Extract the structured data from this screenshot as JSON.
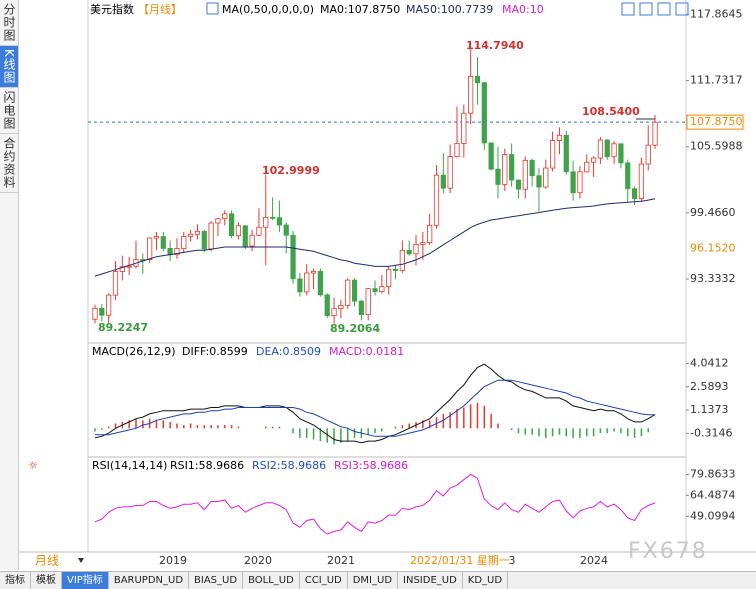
{
  "sidebar": [
    "分时图",
    "K线图",
    "闪电图",
    "合约资料"
  ],
  "tabs": [
    "指标",
    "模板",
    "VIP指标",
    "BARUPDN_UD",
    "BIAS_UD",
    "BOLL_UD",
    "CCI_UD",
    "DMI_UD",
    "INSIDE_UD",
    "KD_UD"
  ],
  "watermark": "FX678",
  "chart_data": {
    "type": "candlestick",
    "title": "美元指数",
    "period": "【月线】",
    "period_tab": "月线",
    "legend": [
      "MA(0,50,0,0,0,0)",
      "MA0:107.8750",
      "MA50:100.7739",
      "MA0:10"
    ],
    "ylim": [
      87.4,
      119.2
    ],
    "yticks": [
      117.8645,
      111.7317,
      105.5988,
      {
        "value": 99.466,
        "label": "99.4660"
      },
      93.3332
    ],
    "up_color": "#e8382f",
    "down_color": "#3ea34a",
    "last_price": {
      "value": 107.875,
      "label": "107.8750"
    },
    "side_label": {
      "value": 96.152,
      "label": "96.1520"
    },
    "annotations": [
      "114.7940",
      "108.5400",
      "102.9999",
      "89.2247",
      "89.2064"
    ],
    "x_labels": [
      "2019",
      "2020",
      "2021",
      "2022/01/31 星期一",
      "3",
      "2024"
    ],
    "ohlc": [
      [
        89.6,
        90.95,
        89.2247,
        90.61
      ],
      [
        90.61,
        91.0,
        89.4,
        89.97
      ],
      [
        89.97,
        92.0,
        89.23,
        91.84
      ],
      [
        91.84,
        95.0,
        91.4,
        94.02
      ],
      [
        94.02,
        95.5,
        93.2,
        94.47
      ],
      [
        94.47,
        95.4,
        93.7,
        94.52
      ],
      [
        94.52,
        96.9,
        94.3,
        95.14
      ],
      [
        95.14,
        95.7,
        93.8,
        95.13
      ],
      [
        95.13,
        97.2,
        94.8,
        97.13
      ],
      [
        97.13,
        97.7,
        96.0,
        97.27
      ],
      [
        97.27,
        97.7,
        95.9,
        96.17
      ],
      [
        96.17,
        96.9,
        95.0,
        95.58
      ],
      [
        95.58,
        97.1,
        95.2,
        96.16
      ],
      [
        96.16,
        97.7,
        95.8,
        97.28
      ],
      [
        97.28,
        97.9,
        96.8,
        97.48
      ],
      [
        97.48,
        98.4,
        97.0,
        97.75
      ],
      [
        97.75,
        97.9,
        95.8,
        96.13
      ],
      [
        96.13,
        98.7,
        95.9,
        98.52
      ],
      [
        98.52,
        99.0,
        97.3,
        98.92
      ],
      [
        98.92,
        99.7,
        98.3,
        99.38
      ],
      [
        99.38,
        99.7,
        97.1,
        97.35
      ],
      [
        97.35,
        98.6,
        97.0,
        98.27
      ],
      [
        98.27,
        98.3,
        96.1,
        96.39
      ],
      [
        96.39,
        97.9,
        95.9,
        97.39
      ],
      [
        97.39,
        99.9,
        97.3,
        98.13
      ],
      [
        98.13,
        102.9999,
        94.6,
        99.05
      ],
      [
        99.05,
        100.9,
        98.8,
        99.02
      ],
      [
        99.02,
        100.6,
        97.7,
        98.34
      ],
      [
        98.34,
        98.6,
        95.7,
        97.39
      ],
      [
        97.39,
        97.8,
        92.9,
        93.35
      ],
      [
        93.35,
        93.9,
        91.7,
        92.14
      ],
      [
        92.14,
        94.7,
        91.8,
        93.89
      ],
      [
        93.89,
        94.3,
        92.4,
        94.04
      ],
      [
        94.04,
        94.3,
        91.7,
        91.87
      ],
      [
        91.87,
        92.0,
        89.7,
        89.94
      ],
      [
        89.94,
        91.6,
        89.2064,
        90.58
      ],
      [
        90.58,
        91.4,
        89.7,
        90.88
      ],
      [
        90.88,
        93.4,
        90.6,
        93.23
      ],
      [
        93.23,
        93.4,
        90.8,
        91.28
      ],
      [
        91.28,
        91.4,
        89.5,
        90.03
      ],
      [
        90.03,
        92.5,
        89.5,
        92.44
      ],
      [
        92.44,
        93.2,
        91.8,
        92.17
      ],
      [
        92.17,
        93.7,
        92.0,
        92.63
      ],
      [
        92.63,
        94.5,
        91.9,
        94.23
      ],
      [
        94.23,
        94.6,
        93.3,
        94.12
      ],
      [
        94.12,
        96.9,
        93.9,
        95.99
      ],
      [
        95.99,
        96.9,
        95.5,
        95.67
      ],
      [
        95.67,
        97.4,
        94.6,
        96.54
      ],
      [
        96.54,
        97.7,
        95.1,
        96.71
      ],
      [
        96.71,
        99.4,
        96.5,
        98.31
      ],
      [
        98.31,
        103.9,
        98.0,
        102.96
      ],
      [
        102.96,
        105.0,
        101.3,
        101.75
      ],
      [
        101.75,
        105.8,
        101.3,
        104.69
      ],
      [
        104.69,
        109.3,
        104.6,
        105.9
      ],
      [
        105.9,
        109.5,
        104.6,
        108.7
      ],
      [
        108.7,
        114.794,
        107.7,
        112.12
      ],
      [
        112.12,
        113.9,
        109.5,
        111.53
      ],
      [
        111.53,
        111.6,
        105.3,
        105.95
      ],
      [
        105.95,
        106.0,
        103.4,
        103.52
      ],
      [
        103.52,
        105.6,
        100.8,
        102.1
      ],
      [
        102.1,
        105.4,
        101.5,
        104.87
      ],
      [
        104.87,
        105.9,
        101.9,
        102.51
      ],
      [
        102.51,
        102.5,
        100.8,
        101.66
      ],
      [
        101.66,
        104.7,
        100.8,
        104.33
      ],
      [
        104.33,
        104.5,
        101.9,
        102.91
      ],
      [
        102.91,
        103.6,
        99.6,
        101.86
      ],
      [
        101.86,
        104.4,
        101.7,
        103.62
      ],
      [
        103.62,
        107.0,
        103.3,
        106.17
      ],
      [
        106.17,
        107.4,
        104.9,
        106.66
      ],
      [
        106.66,
        107.1,
        103.0,
        103.27
      ],
      [
        103.27,
        104.3,
        100.6,
        101.33
      ],
      [
        101.33,
        103.8,
        100.8,
        103.27
      ],
      [
        103.27,
        104.9,
        103.2,
        104.16
      ],
      [
        104.16,
        104.7,
        102.8,
        104.55
      ],
      [
        104.55,
        106.5,
        104.0,
        106.22
      ],
      [
        106.22,
        106.3,
        104.4,
        104.67
      ],
      [
        104.67,
        106.1,
        104.0,
        105.87
      ],
      [
        105.87,
        105.9,
        103.6,
        104.1
      ],
      [
        104.1,
        104.4,
        100.5,
        101.7
      ],
      [
        101.7,
        101.9,
        100.2,
        100.78
      ],
      [
        100.78,
        104.6,
        100.5,
        103.99
      ],
      [
        103.99,
        107.6,
        103.4,
        105.74
      ],
      [
        105.74,
        108.54,
        105.4,
        107.875
      ]
    ],
    "ma50": {
      "color": "#1f2a6b",
      "values": [
        93.6,
        93.8,
        94.0,
        94.2,
        94.4,
        94.6,
        94.8,
        95.0,
        95.2,
        95.4,
        95.5,
        95.6,
        95.7,
        95.8,
        95.9,
        96.0,
        96.0,
        96.1,
        96.2,
        96.3,
        96.3,
        96.3,
        96.3,
        96.3,
        96.3,
        96.3,
        96.3,
        96.3,
        96.3,
        96.2,
        96.1,
        96.0,
        95.9,
        95.7,
        95.5,
        95.3,
        95.1,
        95.0,
        94.8,
        94.7,
        94.6,
        94.5,
        94.5,
        94.5,
        94.6,
        94.7,
        94.9,
        95.1,
        95.4,
        95.7,
        96.1,
        96.5,
        96.9,
        97.3,
        97.7,
        98.1,
        98.4,
        98.6,
        98.8,
        98.9,
        99.0,
        99.1,
        99.2,
        99.3,
        99.4,
        99.5,
        99.6,
        99.7,
        99.8,
        99.9,
        99.95,
        100.0,
        100.05,
        100.1,
        100.2,
        100.3,
        100.35,
        100.4,
        100.45,
        100.5,
        100.55,
        100.65,
        100.77
      ]
    },
    "macd": {
      "title": "MACD(26,12,9)",
      "legend": [
        "DIFF:0.8599",
        "DEA:0.8509",
        "MACD:0.0181"
      ],
      "ylim": [
        -1.79,
        5.26
      ],
      "yticks": [
        4.0412,
        2.5893,
        1.1373,
        -0.3146
      ],
      "dif": {
        "color": "#111111",
        "values": [
          -0.6,
          -0.5,
          -0.3,
          0.0,
          0.2,
          0.4,
          0.6,
          0.7,
          0.9,
          1.0,
          1.1,
          1.1,
          1.1,
          1.1,
          1.2,
          1.2,
          1.2,
          1.3,
          1.3,
          1.4,
          1.4,
          1.4,
          1.3,
          1.3,
          1.3,
          1.4,
          1.4,
          1.4,
          1.3,
          1.0,
          0.6,
          0.4,
          0.2,
          -0.1,
          -0.4,
          -0.7,
          -0.8,
          -0.8,
          -0.8,
          -0.9,
          -0.8,
          -0.8,
          -0.7,
          -0.5,
          -0.4,
          -0.2,
          0.0,
          0.2,
          0.4,
          0.6,
          1.0,
          1.4,
          1.8,
          2.3,
          2.7,
          3.3,
          3.8,
          4.0,
          3.7,
          3.3,
          3.0,
          2.9,
          2.6,
          2.4,
          2.3,
          2.1,
          1.9,
          1.9,
          1.9,
          1.7,
          1.4,
          1.3,
          1.2,
          1.1,
          1.2,
          1.1,
          1.1,
          0.9,
          0.6,
          0.4,
          0.4,
          0.6,
          0.8599
        ]
      },
      "dea": {
        "color": "#1f3fb0",
        "values": [
          -0.4,
          -0.4,
          -0.4,
          -0.3,
          -0.2,
          -0.1,
          0.0,
          0.2,
          0.3,
          0.5,
          0.6,
          0.7,
          0.8,
          0.9,
          0.9,
          1.0,
          1.0,
          1.1,
          1.1,
          1.2,
          1.2,
          1.3,
          1.3,
          1.3,
          1.3,
          1.3,
          1.3,
          1.3,
          1.3,
          1.3,
          1.2,
          1.0,
          0.9,
          0.7,
          0.5,
          0.3,
          0.1,
          0.0,
          -0.2,
          -0.3,
          -0.4,
          -0.5,
          -0.5,
          -0.5,
          -0.5,
          -0.4,
          -0.3,
          -0.2,
          -0.1,
          0.1,
          0.3,
          0.5,
          0.8,
          1.1,
          1.4,
          1.8,
          2.2,
          2.6,
          2.8,
          3.0,
          3.0,
          3.0,
          2.9,
          2.8,
          2.7,
          2.6,
          2.5,
          2.4,
          2.3,
          2.2,
          2.0,
          1.9,
          1.7,
          1.6,
          1.5,
          1.4,
          1.3,
          1.2,
          1.1,
          1.0,
          0.9,
          0.85,
          0.8509
        ]
      },
      "hist": [
        -0.2,
        -0.1,
        0.1,
        0.3,
        0.4,
        0.5,
        0.6,
        0.5,
        0.6,
        0.5,
        0.5,
        0.4,
        0.3,
        0.2,
        0.3,
        0.2,
        0.2,
        0.2,
        0.2,
        0.2,
        0.2,
        0.1,
        0.0,
        0.0,
        0.0,
        0.1,
        0.1,
        0.1,
        0.0,
        -0.3,
        -0.6,
        -0.6,
        -0.7,
        -0.8,
        -0.9,
        -1.0,
        -0.9,
        -0.8,
        -0.6,
        -0.6,
        -0.4,
        -0.3,
        -0.2,
        0.0,
        0.1,
        0.2,
        0.3,
        0.4,
        0.5,
        0.5,
        0.7,
        0.9,
        1.0,
        1.2,
        1.3,
        1.5,
        1.6,
        1.4,
        0.9,
        0.3,
        0.0,
        -0.1,
        -0.3,
        -0.4,
        -0.4,
        -0.5,
        -0.6,
        -0.5,
        -0.4,
        -0.5,
        -0.6,
        -0.6,
        -0.5,
        -0.5,
        -0.3,
        -0.3,
        -0.2,
        -0.3,
        -0.5,
        -0.6,
        -0.5,
        -0.25,
        0.0181
      ]
    },
    "rsi": {
      "title": "RSI(14,14,14)",
      "legend": [
        "RSI1:58.9686",
        "RSI2:58.9686",
        "RSI3:58.9686"
      ],
      "ylim": [
        22.8,
        92.0
      ],
      "yticks": [
        79.8633,
        64.4874,
        49.0994
      ],
      "color": "#e020e0",
      "values": [
        45,
        47,
        52,
        55,
        56,
        56,
        57,
        57,
        60,
        60,
        57,
        55,
        56,
        58,
        58,
        59,
        54,
        60,
        60,
        61,
        55,
        57,
        52,
        55,
        57,
        59,
        59,
        57,
        54,
        44,
        41,
        46,
        47,
        40,
        36,
        38,
        39,
        45,
        41,
        38,
        45,
        44,
        46,
        50,
        50,
        55,
        54,
        56,
        57,
        61,
        68,
        64,
        70,
        72,
        76,
        80,
        77,
        62,
        57,
        54,
        59,
        54,
        52,
        58,
        55,
        52,
        56,
        60,
        61,
        53,
        48,
        53,
        55,
        56,
        60,
        56,
        58,
        54,
        48,
        46,
        54,
        57,
        58.9686
      ]
    }
  }
}
